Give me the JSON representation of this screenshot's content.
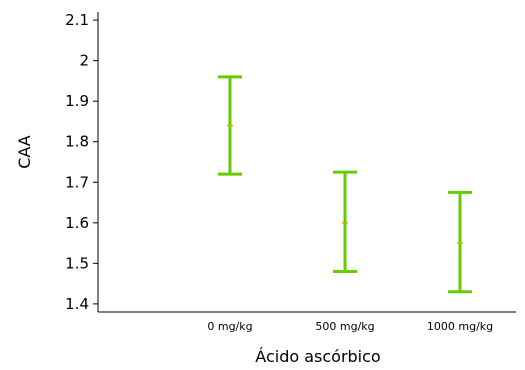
{
  "chart_data": {
    "type": "errorbar",
    "xlabel": "Ácido ascórbico",
    "ylabel": "CAA",
    "categories": [
      "0 mg/kg",
      "500 mg/kg",
      "1000 mg/kg"
    ],
    "series": [
      {
        "means": [
          1.84,
          1.6,
          1.55
        ],
        "lower": [
          1.72,
          1.48,
          1.43
        ],
        "upper": [
          1.96,
          1.725,
          1.675
        ]
      }
    ],
    "ylim": [
      1.38,
      2.12
    ],
    "yticks": [
      "1.4",
      "1.5",
      "1.6",
      "1.7",
      "1.8",
      "1.9",
      "2",
      "2.1"
    ],
    "color": "#66cc00",
    "grid": false
  }
}
